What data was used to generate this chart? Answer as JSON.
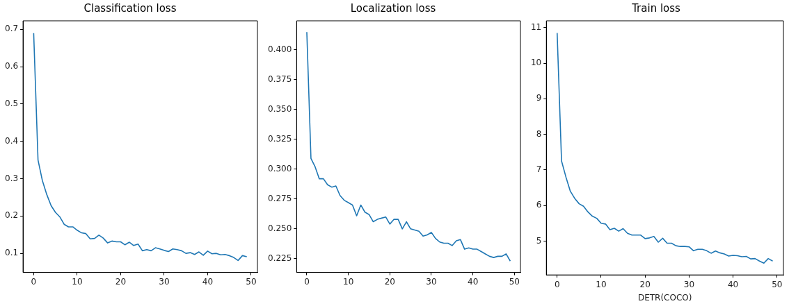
{
  "chart_data": [
    {
      "type": "line",
      "title": "Classification loss",
      "x": [
        0,
        1,
        2,
        3,
        4,
        5,
        6,
        7,
        8,
        9,
        10,
        11,
        12,
        13,
        14,
        15,
        16,
        17,
        18,
        19,
        20,
        21,
        22,
        23,
        24,
        25,
        26,
        27,
        28,
        29,
        30,
        31,
        32,
        33,
        34,
        35,
        36,
        37,
        38,
        39,
        40,
        41,
        42,
        43,
        44,
        45,
        46,
        47,
        48,
        49
      ],
      "xlim": [
        -2.45,
        51.45
      ],
      "xticks": [
        0,
        10,
        20,
        30,
        40,
        50
      ],
      "ylim": [
        0.049,
        0.723
      ],
      "yticks": [
        0.1,
        0.2,
        0.3,
        0.4,
        0.5,
        0.6,
        0.7
      ],
      "series": [
        {
          "color": "#1f77b4",
          "values": [
            0.69,
            0.35,
            0.295,
            0.258,
            0.228,
            0.21,
            0.198,
            0.178,
            0.171,
            0.171,
            0.162,
            0.155,
            0.153,
            0.139,
            0.14,
            0.149,
            0.141,
            0.128,
            0.133,
            0.131,
            0.131,
            0.123,
            0.13,
            0.121,
            0.125,
            0.107,
            0.11,
            0.107,
            0.115,
            0.112,
            0.108,
            0.105,
            0.112,
            0.11,
            0.107,
            0.1,
            0.102,
            0.097,
            0.104,
            0.095,
            0.106,
            0.099,
            0.1,
            0.096,
            0.097,
            0.094,
            0.089,
            0.081,
            0.094,
            0.091
          ]
        }
      ]
    },
    {
      "type": "line",
      "title": "Localization loss",
      "x": [
        0,
        1,
        2,
        3,
        4,
        5,
        6,
        7,
        8,
        9,
        10,
        11,
        12,
        13,
        14,
        15,
        16,
        17,
        18,
        19,
        20,
        21,
        22,
        23,
        24,
        25,
        26,
        27,
        28,
        29,
        30,
        31,
        32,
        33,
        34,
        35,
        36,
        37,
        38,
        39,
        40,
        41,
        42,
        43,
        44,
        45,
        46,
        47,
        48,
        49
      ],
      "xlim": [
        -2.45,
        51.45
      ],
      "xticks": [
        0,
        10,
        20,
        30,
        40,
        50
      ],
      "ylim": [
        0.2135,
        0.4244
      ],
      "yticks": [
        {
          "value": 0.225,
          "label": "0.225"
        },
        {
          "value": 0.25,
          "label": "0.250"
        },
        {
          "value": 0.275,
          "label": "0.275"
        },
        {
          "value": 0.3,
          "label": "0.300"
        },
        {
          "value": 0.325,
          "label": "0.325"
        },
        {
          "value": 0.35,
          "label": "0.350"
        },
        {
          "value": 0.375,
          "label": "0.375"
        },
        {
          "value": 0.4,
          "label": "0.400"
        }
      ],
      "series": [
        {
          "color": "#1f77b4",
          "values": [
            0.415,
            0.309,
            0.302,
            0.292,
            0.292,
            0.287,
            0.285,
            0.286,
            0.278,
            0.274,
            0.272,
            0.27,
            0.261,
            0.27,
            0.264,
            0.262,
            0.256,
            0.258,
            0.259,
            0.26,
            0.254,
            0.258,
            0.258,
            0.25,
            0.256,
            0.25,
            0.249,
            0.248,
            0.244,
            0.245,
            0.247,
            0.242,
            0.239,
            0.238,
            0.238,
            0.236,
            0.24,
            0.241,
            0.233,
            0.234,
            0.233,
            0.233,
            0.231,
            0.229,
            0.227,
            0.226,
            0.227,
            0.227,
            0.229,
            0.223
          ]
        }
      ]
    },
    {
      "type": "line",
      "title": "Train loss",
      "xlabel": "DETR(COCO)",
      "x": [
        0,
        1,
        2,
        3,
        4,
        5,
        6,
        7,
        8,
        9,
        10,
        11,
        12,
        13,
        14,
        15,
        16,
        17,
        18,
        19,
        20,
        21,
        22,
        23,
        24,
        25,
        26,
        27,
        28,
        29,
        30,
        31,
        32,
        33,
        34,
        35,
        36,
        37,
        38,
        39,
        40,
        41,
        42,
        43,
        44,
        45,
        46,
        47,
        48,
        49
      ],
      "xlim": [
        -2.45,
        51.45
      ],
      "xticks": [
        0,
        10,
        20,
        30,
        40,
        50
      ],
      "ylim": [
        4.05,
        11.19
      ],
      "yticks": [
        5,
        6,
        7,
        8,
        9,
        10,
        11
      ],
      "series": [
        {
          "color": "#1f77b4",
          "values": [
            10.85,
            7.25,
            6.8,
            6.4,
            6.2,
            6.05,
            5.98,
            5.82,
            5.7,
            5.64,
            5.5,
            5.48,
            5.32,
            5.36,
            5.28,
            5.35,
            5.22,
            5.17,
            5.17,
            5.17,
            5.07,
            5.09,
            5.13,
            4.97,
            5.08,
            4.94,
            4.94,
            4.87,
            4.85,
            4.85,
            4.84,
            4.73,
            4.77,
            4.77,
            4.73,
            4.66,
            4.72,
            4.67,
            4.64,
            4.58,
            4.6,
            4.59,
            4.56,
            4.57,
            4.5,
            4.51,
            4.44,
            4.38,
            4.51,
            4.44
          ]
        }
      ]
    }
  ]
}
